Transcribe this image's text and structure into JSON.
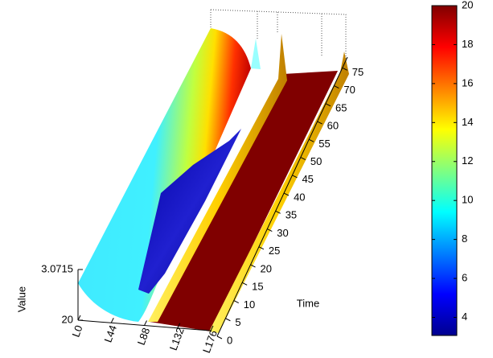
{
  "chart_data": {
    "type": "surface3d",
    "zlabel": "Value",
    "ylabel": "Time",
    "xcategories": [
      "L0",
      "L44",
      "L88",
      "L132",
      "L176"
    ],
    "ylim": [
      0,
      78
    ],
    "yticks": [
      0,
      5,
      10,
      15,
      20,
      25,
      30,
      35,
      40,
      45,
      50,
      55,
      60,
      65,
      70,
      75
    ],
    "zlim": [
      3.0715,
      20
    ],
    "zticks": [
      3.0715,
      20
    ],
    "zreverse": true,
    "colorbar": {
      "clim": [
        3.0715,
        20
      ],
      "ticks": [
        4,
        6,
        8,
        10,
        12,
        14,
        16,
        18,
        20
      ],
      "colormap": [
        "#00008f",
        "#0000ff",
        "#0080ff",
        "#00ffff",
        "#80ff80",
        "#ffff00",
        "#ff8000",
        "#ff0000",
        "#800000"
      ]
    }
  }
}
